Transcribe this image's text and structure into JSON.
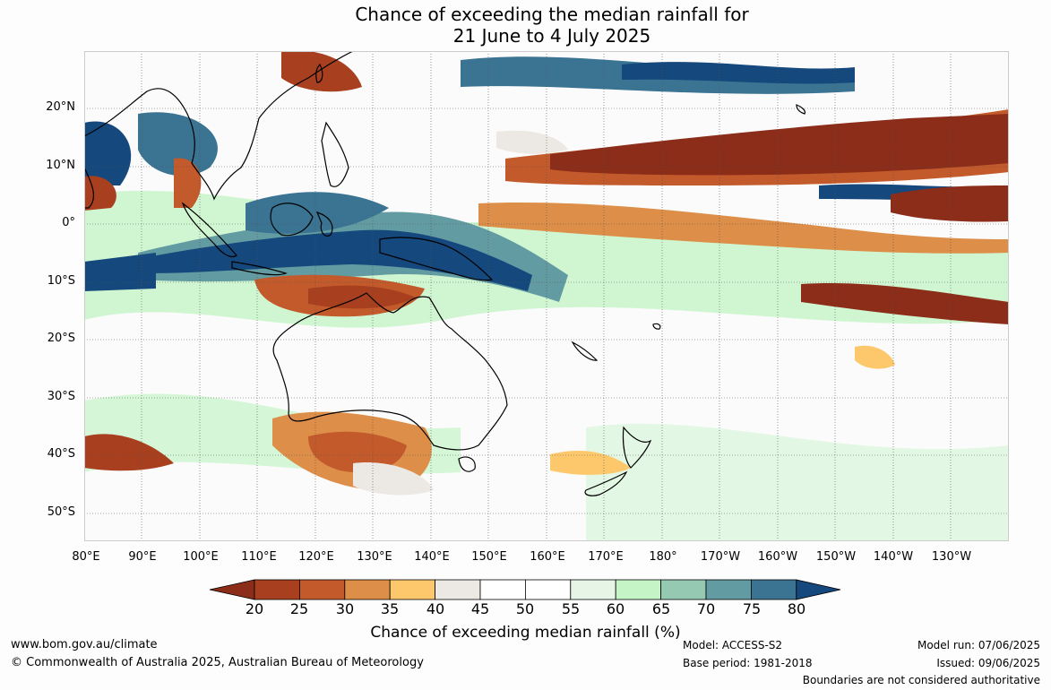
{
  "title": {
    "line1": "Chance of exceeding the median rainfall for",
    "line2": "21 June to 4 July 2025"
  },
  "map": {
    "lat_labels": [
      "20°N",
      "10°N",
      "0°",
      "10°S",
      "20°S",
      "30°S",
      "40°S",
      "50°S"
    ],
    "lon_labels": [
      "80°E",
      "90°E",
      "100°E",
      "110°E",
      "120°E",
      "130°E",
      "140°E",
      "150°E",
      "160°E",
      "170°E",
      "180°",
      "170°W",
      "160°W",
      "150°W",
      "140°W",
      "130°W"
    ],
    "colors": {
      "lt20": "#8c2d19",
      "20-25": "#a8401f",
      "25-30": "#c25a2b",
      "30-35": "#dd8e48",
      "35-40": "#fdc86b",
      "40-45": "#ece8e3",
      "45-50": "#ffffff",
      "50-55": "#ffffff",
      "55-60": "#e6f5e6",
      "60-65": "#c5f5c7",
      "65-70": "#95c9b1",
      "70-75": "#629ba1",
      "75-80": "#3b7393",
      "gt80": "#15487d"
    }
  },
  "colorbar": {
    "ticks": [
      "20",
      "25",
      "30",
      "35",
      "40",
      "45",
      "50",
      "55",
      "60",
      "65",
      "70",
      "75",
      "80"
    ],
    "label": "Chance of exceeding median rainfall (%)"
  },
  "footer": {
    "website": "www.bom.gov.au/climate",
    "copyright": "© Commonwealth of Australia 2025, Australian Bureau of Meteorology",
    "model": "Model: ACCESS-S2",
    "base_period": "Base period: 1981-2018",
    "model_run": "Model run: 07/06/2025",
    "issued": "Issued: 09/06/2025",
    "disclaimer": "Boundaries are not considered authoritative"
  }
}
